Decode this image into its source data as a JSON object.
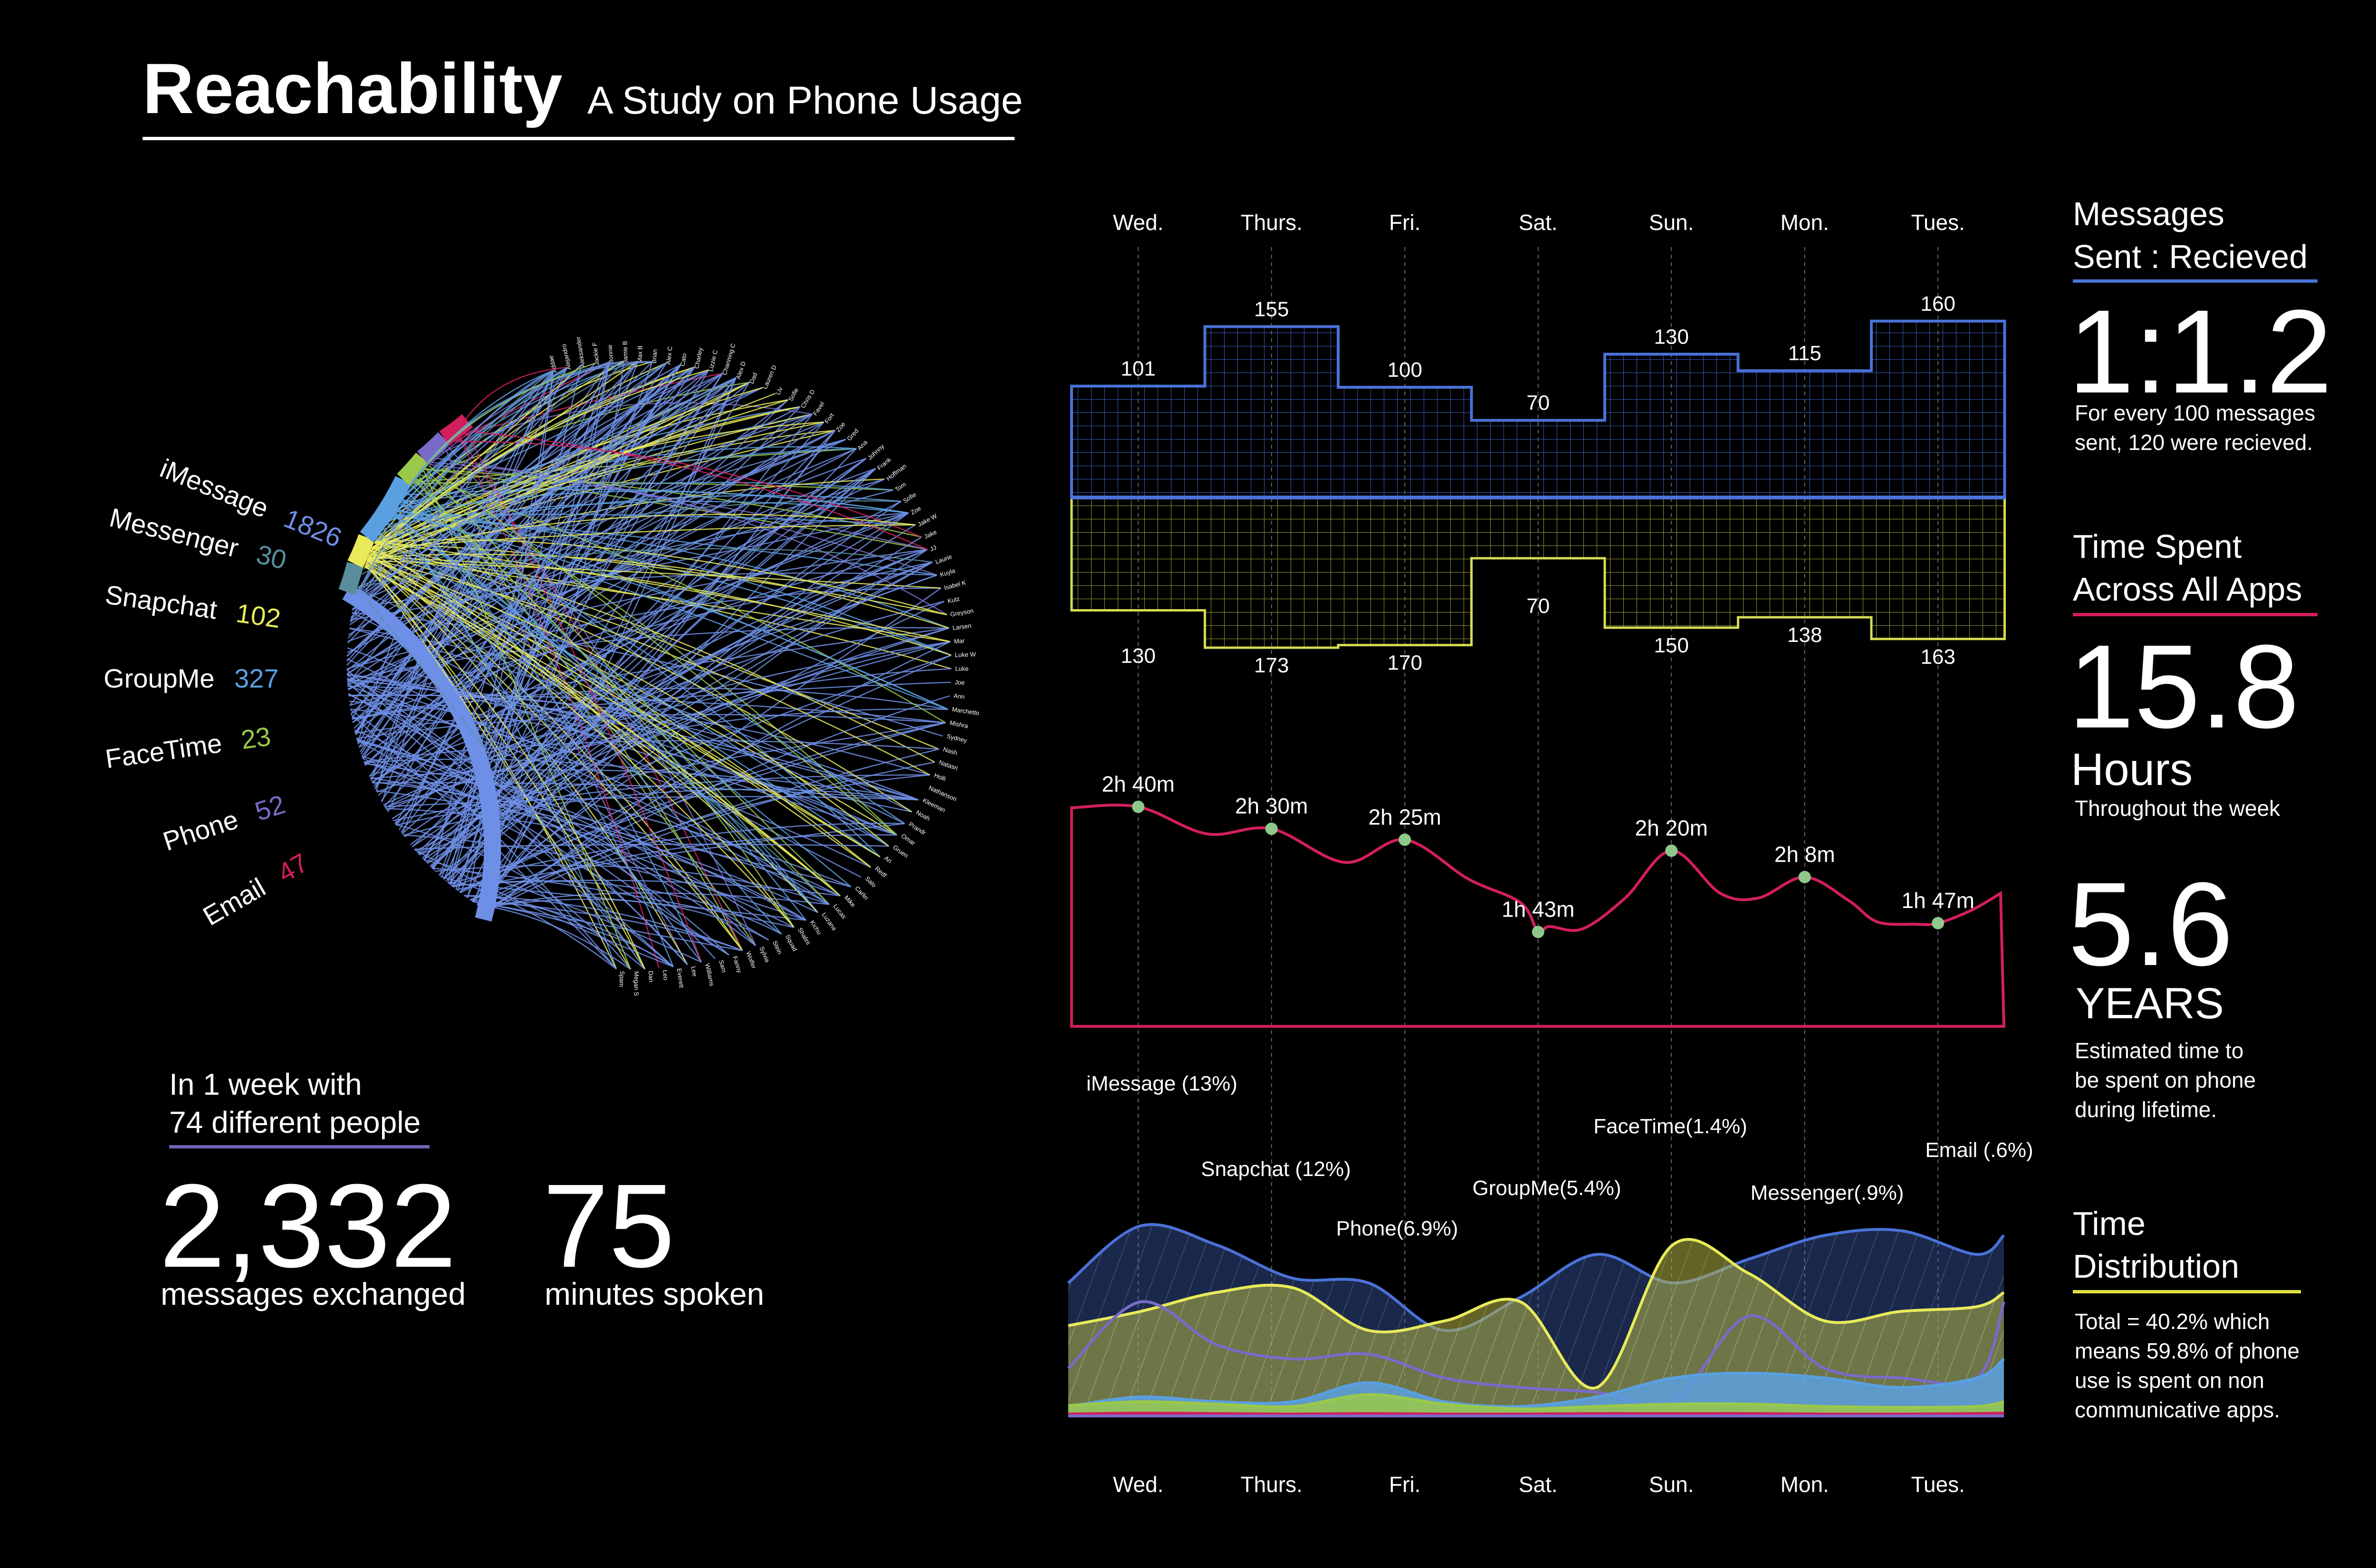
{
  "header": {
    "title": "Reachability",
    "subtitle": "A Study on Phone Usage"
  },
  "colors": {
    "imessage": "#4a72d8",
    "messenger": "#5a8d9c",
    "snapchat": "#e8ea5a",
    "groupme": "#5aa0e0",
    "facetime": "#9ac84a",
    "phone": "#6a5aa8",
    "email": "#d21e5e",
    "received": "#d7dc53",
    "sent": "#4a72d8"
  },
  "apps": [
    {
      "name": "iMessage",
      "count": "1826",
      "color": "#6f8fe6"
    },
    {
      "name": "Messenger",
      "count": "30",
      "color": "#5a8d9c"
    },
    {
      "name": "Snapchat",
      "count": "102",
      "color": "#e8ea5a"
    },
    {
      "name": "GroupMe",
      "count": "327",
      "color": "#5aa0e0"
    },
    {
      "name": "FaceTime",
      "count": "23",
      "color": "#9ac84a"
    },
    {
      "name": "Phone",
      "count": "52",
      "color": "#7a6ac8"
    },
    {
      "name": "Email",
      "count": "47",
      "color": "#d21e5e"
    }
  ],
  "contacts": [
    "Addae",
    "Alejandro",
    "Aleksander",
    "Jackie F",
    "Bonnie",
    "Jamie B",
    "Max B",
    "Brian",
    "Alex C",
    "Cato",
    "Charley",
    "Lizzie C",
    "Channing C",
    "Alex D",
    "Dad",
    "Lauren D",
    "Liv",
    "Sofie",
    "Chris D",
    "Favel",
    "Fort",
    "Zoe",
    "Gred",
    "Ana",
    "Johnny",
    "Frank",
    "Hoffman",
    "Tom",
    "Sofie",
    "Zoe",
    "Jake W",
    "Jake",
    "JJ",
    "Laurie",
    "Kuyla",
    "Isabel K",
    "Kutz",
    "Greyson",
    "Larsen",
    "Mar",
    "Luke W",
    "Luke",
    "Joe",
    "Ann",
    "Marchetto",
    "Mishra",
    "Sydney",
    "Nash",
    "Natasri",
    "Holli",
    "Nathanson",
    "Kleeman",
    "Noah",
    "Prandr",
    "Omar",
    "Gruen",
    "Ari",
    "Redf",
    "Salo",
    "Carlin",
    "Mike",
    "Lucas",
    "Luzana",
    "Kichu",
    "Shalini",
    "Squad",
    "Stein",
    "Sylvia",
    "Wolfer",
    "Fanny",
    "Sam",
    "Williams",
    "Lee",
    "Everett",
    "Leo",
    "Dan",
    "Megan S",
    "Spam"
  ],
  "summary": {
    "line1": "In 1 week with",
    "line2": "74 different people",
    "messages_value": "2,332",
    "messages_label": "messages exchanged",
    "minutes_value": "75",
    "minutes_label": "minutes spoken"
  },
  "sidebar": {
    "ratio_heading_1": "Messages",
    "ratio_heading_2": "Sent : Recieved",
    "ratio_value": "1:1.2",
    "ratio_note": "For every 100 messages\nsent, 120 were recieved.",
    "time_heading_1": "Time Spent",
    "time_heading_2": "Across All Apps",
    "time_value": "15.8",
    "time_unit": "Hours",
    "time_note": "Throughout the week",
    "years_value": "5.6",
    "years_unit": "YEARS",
    "years_note": "Estimated time to\nbe spent on phone\nduring lifetime.",
    "dist_heading_1": "Time",
    "dist_heading_2": "Distribution",
    "dist_note": "Total  = 40.2% which\nmeans 59.8% of phone\nuse is spent on non\ncommunicative apps."
  },
  "chart_data": [
    {
      "type": "bar",
      "title": "",
      "categories": [
        "Wed.",
        "Thurs.",
        "Fri.",
        "Sat.",
        "Sun.",
        "Mon.",
        "Tues."
      ],
      "series": [
        {
          "values": [
            101,
            155,
            100,
            70,
            130,
            115,
            160
          ],
          "color": "#4a72d8"
        },
        {
          "values": [
            130,
            173,
            170,
            70,
            150,
            138,
            163
          ],
          "color": "#d7dc53"
        }
      ]
    },
    {
      "type": "line",
      "title": "",
      "categories": [
        "Wed.",
        "Thurs.",
        "Fri.",
        "Sat.",
        "Sun.",
        "Mon.",
        "Tues."
      ],
      "series": [
        {
          "values": [
            160,
            150,
            145,
            103,
            140,
            128,
            107
          ],
          "color": "#d21e5e"
        }
      ],
      "labels": [
        "2h 40m",
        "2h 30m",
        "2h 25m",
        "1h 43m",
        "2h 20m",
        "2h 8m",
        "1h 47m"
      ],
      "unit": "minutes"
    },
    {
      "type": "area",
      "title": "",
      "categories": [
        "Wed.",
        "Thurs.",
        "Fri.",
        "Sat.",
        "Sun.",
        "Mon.",
        "Tues."
      ],
      "annotations": [
        "iMessage (13%)",
        "Snapchat (12%)",
        "Phone(6.9%)",
        "GroupMe(5.4%)",
        "FaceTime(1.4%)",
        "Messenger(.9%)",
        "Email (.6%)"
      ],
      "series": [
        {
          "name": "iMessage",
          "share": 13,
          "color": "#4a72d8"
        },
        {
          "name": "Snapchat",
          "share": 12,
          "color": "#e8ea5a"
        },
        {
          "name": "Phone",
          "share": 6.9,
          "color": "#7a6ac8"
        },
        {
          "name": "GroupMe",
          "share": 5.4,
          "color": "#5aa0e0"
        },
        {
          "name": "FaceTime",
          "share": 1.4,
          "color": "#9ac84a"
        },
        {
          "name": "Messenger",
          "share": 0.9,
          "color": "#5a8d9c"
        },
        {
          "name": "Email",
          "share": 0.6,
          "color": "#d21e5e"
        }
      ]
    }
  ]
}
